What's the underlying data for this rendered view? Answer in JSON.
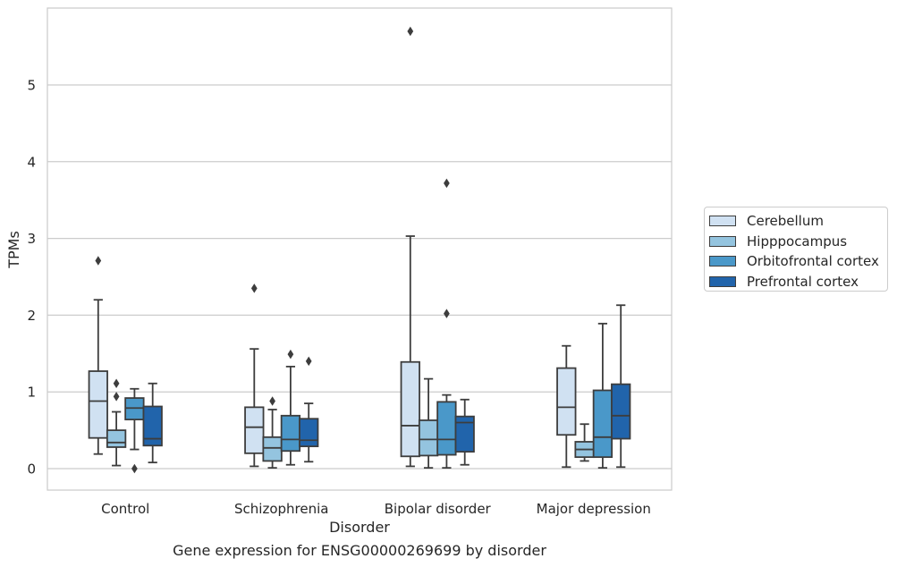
{
  "chart_data": {
    "type": "box",
    "title": "Gene expression for ENSG00000269699 by disorder",
    "xlabel": "Disorder",
    "ylabel": "TPMs",
    "ylim": [
      -0.28,
      6.0
    ],
    "yticks": [
      "0",
      "1",
      "2",
      "3",
      "4",
      "5"
    ],
    "grid": "horizontal",
    "legend_position": "right",
    "categories": [
      "Control",
      "Schizophrenia",
      "Bipolar disorder",
      "Major depression"
    ],
    "series": [
      {
        "name": "Cerebellum",
        "color": "#d0e1f2",
        "boxes": [
          {
            "whislo": 0.19,
            "q1": 0.4,
            "med": 0.88,
            "q3": 1.27,
            "whishi": 2.2,
            "fliers": [
              2.71
            ]
          },
          {
            "whislo": 0.03,
            "q1": 0.2,
            "med": 0.54,
            "q3": 0.8,
            "whishi": 1.56,
            "fliers": [
              2.35
            ]
          },
          {
            "whislo": 0.03,
            "q1": 0.16,
            "med": 0.56,
            "q3": 1.39,
            "whishi": 3.03,
            "fliers": [
              5.7
            ]
          },
          {
            "whislo": 0.02,
            "q1": 0.44,
            "med": 0.8,
            "q3": 1.31,
            "whishi": 1.6,
            "fliers": []
          }
        ]
      },
      {
        "name": "Hipppocampus",
        "color": "#94c4df",
        "boxes": [
          {
            "whislo": 0.04,
            "q1": 0.28,
            "med": 0.34,
            "q3": 0.5,
            "whishi": 0.74,
            "fliers": [
              0.94,
              1.11
            ]
          },
          {
            "whislo": 0.01,
            "q1": 0.1,
            "med": 0.27,
            "q3": 0.41,
            "whishi": 0.77,
            "fliers": [
              0.88
            ]
          },
          {
            "whislo": 0.01,
            "q1": 0.17,
            "med": 0.38,
            "q3": 0.63,
            "whishi": 1.17,
            "fliers": []
          },
          {
            "whislo": 0.1,
            "q1": 0.15,
            "med": 0.25,
            "q3": 0.35,
            "whishi": 0.58,
            "fliers": []
          }
        ]
      },
      {
        "name": "Orbitofrontal cortex",
        "color": "#4a98c9",
        "boxes": [
          {
            "whislo": 0.25,
            "q1": 0.64,
            "med": 0.79,
            "q3": 0.92,
            "whishi": 1.04,
            "fliers": [
              0.0
            ]
          },
          {
            "whislo": 0.05,
            "q1": 0.23,
            "med": 0.38,
            "q3": 0.69,
            "whishi": 1.33,
            "fliers": [
              1.49
            ]
          },
          {
            "whislo": 0.01,
            "q1": 0.18,
            "med": 0.38,
            "q3": 0.87,
            "whishi": 0.96,
            "fliers": [
              2.02,
              3.72
            ]
          },
          {
            "whislo": 0.01,
            "q1": 0.15,
            "med": 0.41,
            "q3": 1.02,
            "whishi": 1.89,
            "fliers": []
          }
        ]
      },
      {
        "name": "Prefrontal cortex",
        "color": "#2164ab",
        "boxes": [
          {
            "whislo": 0.08,
            "q1": 0.3,
            "med": 0.39,
            "q3": 0.81,
            "whishi": 1.11,
            "fliers": []
          },
          {
            "whislo": 0.09,
            "q1": 0.29,
            "med": 0.37,
            "q3": 0.65,
            "whishi": 0.85,
            "fliers": [
              1.4
            ]
          },
          {
            "whislo": 0.05,
            "q1": 0.22,
            "med": 0.6,
            "q3": 0.68,
            "whishi": 0.9,
            "fliers": []
          },
          {
            "whislo": 0.02,
            "q1": 0.39,
            "med": 0.69,
            "q3": 1.1,
            "whishi": 2.13,
            "fliers": []
          }
        ]
      }
    ]
  }
}
